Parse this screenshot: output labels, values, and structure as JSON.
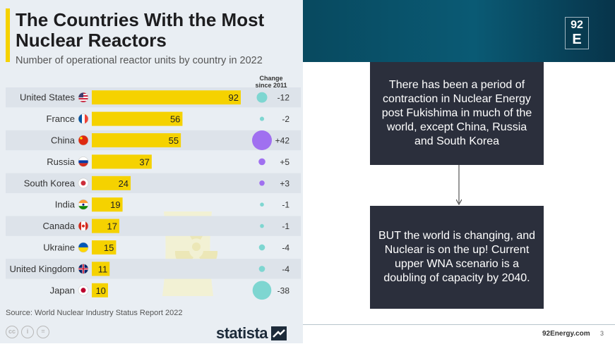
{
  "chart_data": {
    "type": "bar",
    "title": "The Countries With the Most Nuclear Reactors",
    "subtitle": "Number of operational reactor units by country in 2022",
    "change_header": "Change since 2011",
    "categories": [
      "United States",
      "France",
      "China",
      "Russia",
      "South Korea",
      "India",
      "Canada",
      "Ukraine",
      "United Kingdom",
      "Japan"
    ],
    "values": [
      92,
      56,
      55,
      37,
      24,
      19,
      17,
      15,
      11,
      10
    ],
    "change_since_2011": [
      -12,
      -2,
      42,
      5,
      3,
      -1,
      -1,
      -4,
      -4,
      -38
    ],
    "change_labels": [
      "-12",
      "-2",
      "+42",
      "+5",
      "+3",
      "-1",
      "-1",
      "-4",
      "-4",
      "-38"
    ],
    "colors": {
      "bar": "#f5d200",
      "increase_bubble": "#a070f0",
      "decrease_bubble": "#7ed6d1",
      "row_stripe": "#dde3ea"
    },
    "source": "Source: World Nuclear Industry Status Report 2022"
  },
  "branding": {
    "statista": "statista",
    "license_icons": [
      "cc-icon",
      "person-icon",
      "equal-icon"
    ]
  },
  "slide": {
    "logo_top": "92",
    "logo_bottom": "E",
    "box_top_text": "There has been a period of contraction in Nuclear Energy post Fukishima in much of the world, except China, Russia and South Korea",
    "box_bottom_text": "BUT the world is changing, and Nuclear is on the up! Current upper WNA scenario is a doubling of capacity by 2040.",
    "footer_url": "92Energy.com",
    "page_number": "3"
  }
}
